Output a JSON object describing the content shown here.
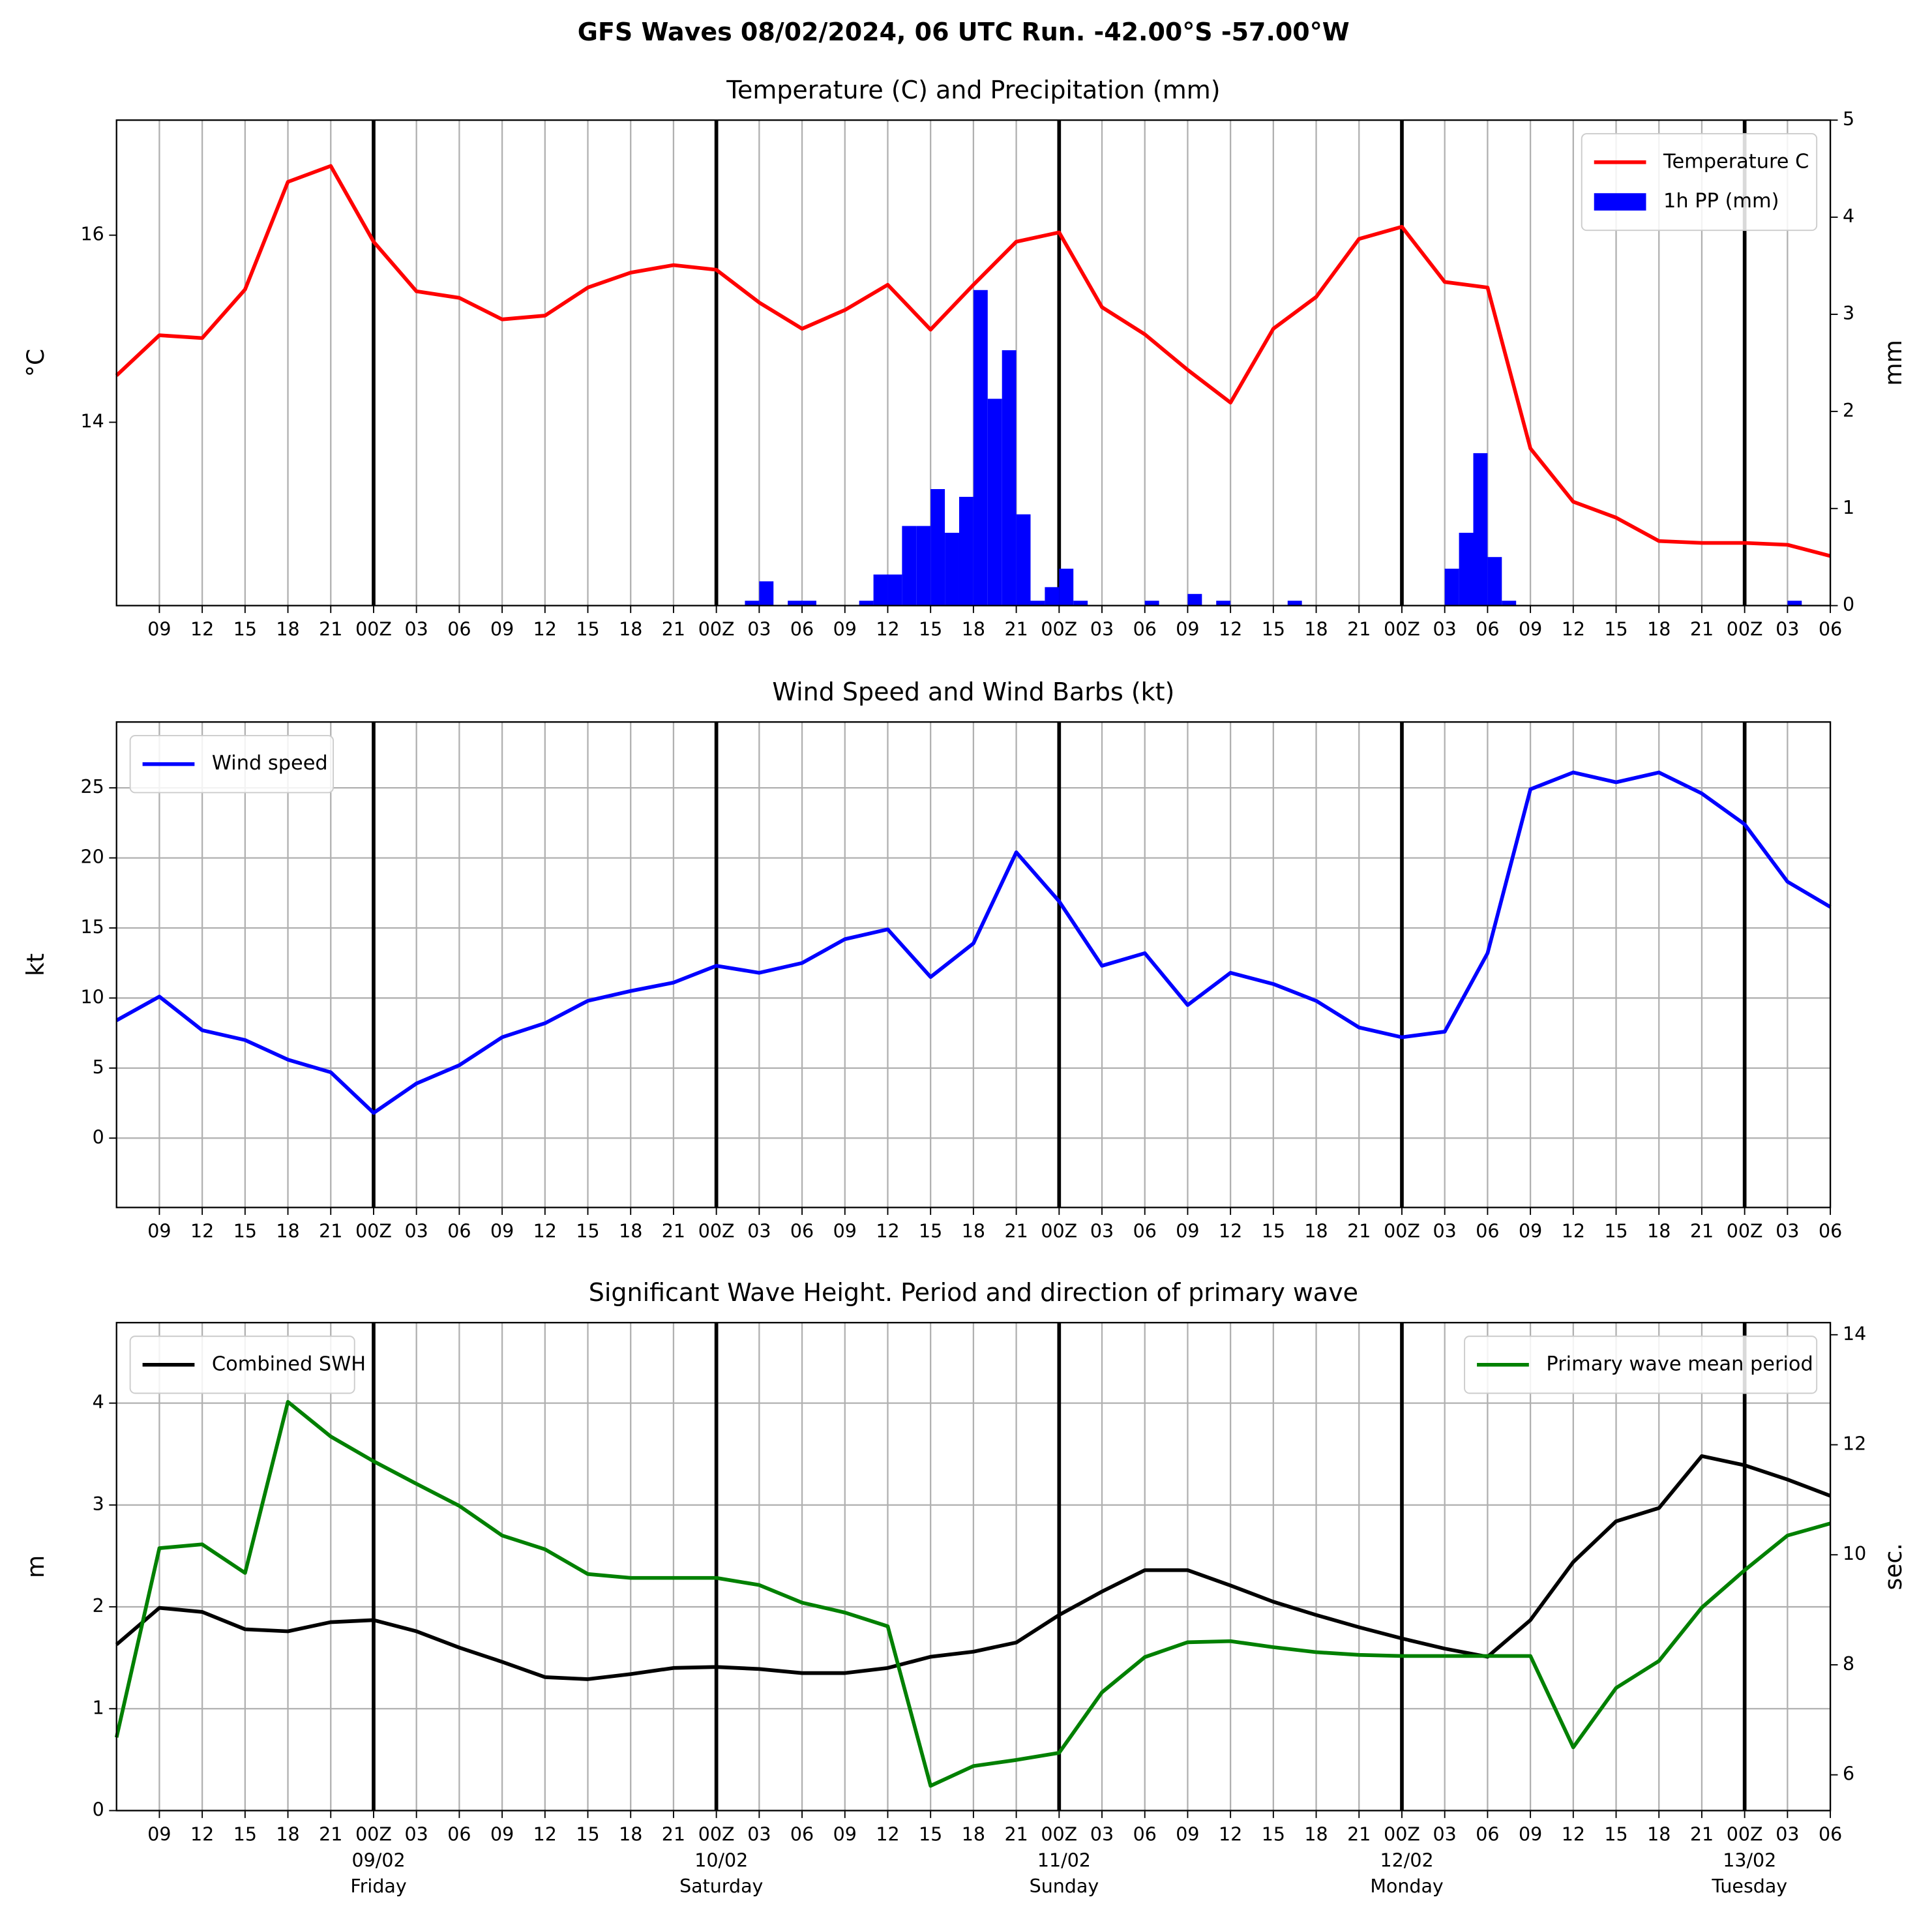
{
  "title": "GFS Waves 08/02/2024, 06 UTC Run. -42.00°S -57.00°W",
  "chart_data": [
    {
      "type": "line",
      "title": "Temperature (C) and Precipitation (mm)",
      "ylabel": "°C",
      "y2label": "mm",
      "grid": "x",
      "legend": "upper right",
      "xlim": [
        0,
        120
      ],
      "ylim": [
        12.04,
        17.23
      ],
      "yticks": [
        14,
        16
      ],
      "y2lim": [
        0,
        5
      ],
      "y2ticks": [
        0,
        1,
        2,
        3,
        4,
        5
      ],
      "day_lines": [
        18,
        42,
        66,
        90,
        114
      ],
      "xticks": [
        {
          "value": 3,
          "label": "09"
        },
        {
          "value": 6,
          "label": "12"
        },
        {
          "value": 9,
          "label": "15"
        },
        {
          "value": 12,
          "label": "18"
        },
        {
          "value": 15,
          "label": "21"
        },
        {
          "value": 18,
          "label": "00Z"
        },
        {
          "value": 21,
          "label": "03"
        },
        {
          "value": 24,
          "label": "06"
        },
        {
          "value": 27,
          "label": "09"
        },
        {
          "value": 30,
          "label": "12"
        },
        {
          "value": 33,
          "label": "15"
        },
        {
          "value": 36,
          "label": "18"
        },
        {
          "value": 39,
          "label": "21"
        },
        {
          "value": 42,
          "label": "00Z"
        },
        {
          "value": 45,
          "label": "03"
        },
        {
          "value": 48,
          "label": "06"
        },
        {
          "value": 51,
          "label": "09"
        },
        {
          "value": 54,
          "label": "12"
        },
        {
          "value": 57,
          "label": "15"
        },
        {
          "value": 60,
          "label": "18"
        },
        {
          "value": 63,
          "label": "21"
        },
        {
          "value": 66,
          "label": "00Z"
        },
        {
          "value": 69,
          "label": "03"
        },
        {
          "value": 72,
          "label": "06"
        },
        {
          "value": 75,
          "label": "09"
        },
        {
          "value": 78,
          "label": "12"
        },
        {
          "value": 81,
          "label": "15"
        },
        {
          "value": 84,
          "label": "18"
        },
        {
          "value": 87,
          "label": "21"
        },
        {
          "value": 90,
          "label": "00Z"
        },
        {
          "value": 93,
          "label": "03"
        },
        {
          "value": 96,
          "label": "06"
        },
        {
          "value": 99,
          "label": "09"
        },
        {
          "value": 102,
          "label": "12"
        },
        {
          "value": 105,
          "label": "15"
        },
        {
          "value": 108,
          "label": "18"
        },
        {
          "value": 111,
          "label": "21"
        },
        {
          "value": 114,
          "label": "00Z"
        },
        {
          "value": 117,
          "label": "03"
        },
        {
          "value": 120,
          "label": "06"
        }
      ],
      "series": [
        {
          "name": "Temperature C",
          "type": "line",
          "color": "#ff0000",
          "axis": "y",
          "x": [
            0,
            3,
            6,
            9,
            12,
            15,
            18,
            21,
            24,
            27,
            30,
            33,
            36,
            39,
            42,
            45,
            48,
            51,
            54,
            57,
            60,
            63,
            66,
            69,
            72,
            75,
            78,
            81,
            84,
            87,
            90,
            93,
            96,
            99,
            102,
            105,
            108,
            111,
            114,
            117,
            120
          ],
          "values": [
            14.5,
            14.93,
            14.9,
            15.42,
            16.57,
            16.74,
            15.93,
            15.4,
            15.33,
            15.1,
            15.14,
            15.44,
            15.6,
            15.68,
            15.63,
            15.28,
            15.0,
            15.2,
            15.47,
            14.99,
            15.47,
            15.93,
            16.03,
            15.23,
            14.94,
            14.56,
            14.21,
            15.0,
            15.34,
            15.96,
            16.09,
            15.5,
            15.44,
            13.72,
            13.15,
            12.98,
            12.73,
            12.71,
            12.71,
            12.69,
            12.57
          ]
        },
        {
          "name": "1h PP (mm)",
          "type": "bar",
          "color": "#0000ff",
          "axis": "y2",
          "x": [
            44,
            45,
            47,
            48,
            52,
            53,
            54,
            55,
            56,
            57,
            58,
            59,
            60,
            61,
            62,
            63,
            64,
            65,
            66,
            67,
            72,
            75,
            77,
            82,
            93,
            94,
            95,
            96,
            97,
            117
          ],
          "values": [
            0.05,
            0.25,
            0.05,
            0.05,
            0.05,
            0.32,
            0.32,
            0.82,
            0.82,
            1.2,
            0.75,
            1.12,
            3.25,
            2.13,
            2.63,
            0.94,
            0.05,
            0.19,
            0.38,
            0.05,
            0.05,
            0.12,
            0.05,
            0.05,
            0.38,
            0.75,
            1.57,
            0.5,
            0.05,
            0.05
          ]
        }
      ]
    },
    {
      "type": "line",
      "title": "Wind Speed and Wind Barbs (kt)",
      "ylabel": "kt",
      "grid": "both",
      "legend": "upper left",
      "xlim": [
        0,
        120
      ],
      "ylim": [
        -4.95,
        29.7
      ],
      "yticks": [
        0,
        5,
        10,
        15,
        20,
        25
      ],
      "day_lines": [
        18,
        42,
        66,
        90,
        114
      ],
      "xticks": [
        {
          "value": 3,
          "label": "09"
        },
        {
          "value": 6,
          "label": "12"
        },
        {
          "value": 9,
          "label": "15"
        },
        {
          "value": 12,
          "label": "18"
        },
        {
          "value": 15,
          "label": "21"
        },
        {
          "value": 18,
          "label": "00Z"
        },
        {
          "value": 21,
          "label": "03"
        },
        {
          "value": 24,
          "label": "06"
        },
        {
          "value": 27,
          "label": "09"
        },
        {
          "value": 30,
          "label": "12"
        },
        {
          "value": 33,
          "label": "15"
        },
        {
          "value": 36,
          "label": "18"
        },
        {
          "value": 39,
          "label": "21"
        },
        {
          "value": 42,
          "label": "00Z"
        },
        {
          "value": 45,
          "label": "03"
        },
        {
          "value": 48,
          "label": "06"
        },
        {
          "value": 51,
          "label": "09"
        },
        {
          "value": 54,
          "label": "12"
        },
        {
          "value": 57,
          "label": "15"
        },
        {
          "value": 60,
          "label": "18"
        },
        {
          "value": 63,
          "label": "21"
        },
        {
          "value": 66,
          "label": "00Z"
        },
        {
          "value": 69,
          "label": "03"
        },
        {
          "value": 72,
          "label": "06"
        },
        {
          "value": 75,
          "label": "09"
        },
        {
          "value": 78,
          "label": "12"
        },
        {
          "value": 81,
          "label": "15"
        },
        {
          "value": 84,
          "label": "18"
        },
        {
          "value": 87,
          "label": "21"
        },
        {
          "value": 90,
          "label": "00Z"
        },
        {
          "value": 93,
          "label": "03"
        },
        {
          "value": 96,
          "label": "06"
        },
        {
          "value": 99,
          "label": "09"
        },
        {
          "value": 102,
          "label": "12"
        },
        {
          "value": 105,
          "label": "15"
        },
        {
          "value": 108,
          "label": "18"
        },
        {
          "value": 111,
          "label": "21"
        },
        {
          "value": 114,
          "label": "00Z"
        },
        {
          "value": 117,
          "label": "03"
        },
        {
          "value": 120,
          "label": "06"
        }
      ],
      "series": [
        {
          "name": "Wind speed",
          "type": "line",
          "color": "#0000ff",
          "axis": "y",
          "x": [
            0,
            3,
            6,
            9,
            12,
            15,
            18,
            21,
            24,
            27,
            30,
            33,
            36,
            39,
            42,
            45,
            48,
            51,
            54,
            57,
            60,
            63,
            66,
            69,
            72,
            75,
            78,
            81,
            84,
            87,
            90,
            93,
            96,
            99,
            102,
            105,
            108,
            111,
            114,
            117,
            120
          ],
          "values": [
            8.4,
            10.1,
            7.7,
            7.0,
            5.6,
            4.7,
            1.8,
            3.9,
            5.2,
            7.2,
            8.2,
            9.8,
            10.5,
            11.1,
            12.3,
            11.8,
            12.5,
            14.2,
            14.9,
            11.5,
            13.9,
            20.4,
            16.9,
            12.3,
            13.2,
            9.5,
            11.8,
            11.0,
            9.8,
            7.9,
            7.2,
            7.6,
            13.2,
            24.9,
            26.1,
            25.4,
            26.1,
            24.6,
            22.4,
            18.3,
            16.5
          ]
        }
      ]
    },
    {
      "type": "line",
      "title": "Significant Wave Height. Period and direction of primary wave",
      "ylabel": "m",
      "y2label": "sec.",
      "y2label_color": "#008000",
      "grid": "both",
      "xlim": [
        0,
        120
      ],
      "ylim": [
        0,
        4.79
      ],
      "yticks": [
        0,
        1,
        2,
        3,
        4
      ],
      "y2lim": [
        5.35,
        14.22
      ],
      "y2ticks": [
        6,
        8,
        10,
        12,
        14
      ],
      "day_lines": [
        18,
        42,
        66,
        90,
        114
      ],
      "xticks": [
        {
          "value": 3,
          "label": "09"
        },
        {
          "value": 6,
          "label": "12"
        },
        {
          "value": 9,
          "label": "15"
        },
        {
          "value": 12,
          "label": "18"
        },
        {
          "value": 15,
          "label": "21"
        },
        {
          "value": 18,
          "label": "00Z"
        },
        {
          "value": 21,
          "label": "03"
        },
        {
          "value": 24,
          "label": "06"
        },
        {
          "value": 27,
          "label": "09"
        },
        {
          "value": 30,
          "label": "12"
        },
        {
          "value": 33,
          "label": "15"
        },
        {
          "value": 36,
          "label": "18"
        },
        {
          "value": 39,
          "label": "21"
        },
        {
          "value": 42,
          "label": "00Z"
        },
        {
          "value": 45,
          "label": "03"
        },
        {
          "value": 48,
          "label": "06"
        },
        {
          "value": 51,
          "label": "09"
        },
        {
          "value": 54,
          "label": "12"
        },
        {
          "value": 57,
          "label": "15"
        },
        {
          "value": 60,
          "label": "18"
        },
        {
          "value": 63,
          "label": "21"
        },
        {
          "value": 66,
          "label": "00Z"
        },
        {
          "value": 69,
          "label": "03"
        },
        {
          "value": 72,
          "label": "06"
        },
        {
          "value": 75,
          "label": "09"
        },
        {
          "value": 78,
          "label": "12"
        },
        {
          "value": 81,
          "label": "15"
        },
        {
          "value": 84,
          "label": "18"
        },
        {
          "value": 87,
          "label": "21"
        },
        {
          "value": 90,
          "label": "00Z"
        },
        {
          "value": 93,
          "label": "03"
        },
        {
          "value": 96,
          "label": "06"
        },
        {
          "value": 99,
          "label": "09"
        },
        {
          "value": 102,
          "label": "12"
        },
        {
          "value": 105,
          "label": "15"
        },
        {
          "value": 108,
          "label": "18"
        },
        {
          "value": 111,
          "label": "21"
        },
        {
          "value": 114,
          "label": "00Z"
        },
        {
          "value": 117,
          "label": "03"
        },
        {
          "value": 120,
          "label": "06"
        }
      ],
      "day_labels": [
        {
          "value": 18,
          "date": "09/02",
          "weekday": "Friday"
        },
        {
          "value": 42,
          "date": "10/02",
          "weekday": "Saturday"
        },
        {
          "value": 66,
          "date": "11/02",
          "weekday": "Sunday"
        },
        {
          "value": 90,
          "date": "12/02",
          "weekday": "Monday"
        },
        {
          "value": 114,
          "date": "13/02",
          "weekday": "Tuesday"
        }
      ],
      "series": [
        {
          "name": "Combined SWH",
          "type": "line",
          "color": "#000000",
          "axis": "y",
          "legend": "upper left",
          "x": [
            0,
            3,
            6,
            9,
            12,
            15,
            18,
            21,
            24,
            27,
            30,
            33,
            36,
            39,
            42,
            45,
            48,
            51,
            54,
            57,
            60,
            63,
            66,
            69,
            72,
            75,
            78,
            81,
            84,
            87,
            90,
            93,
            96,
            99,
            102,
            105,
            108,
            111,
            114,
            117,
            120
          ],
          "values": [
            1.63,
            1.99,
            1.95,
            1.78,
            1.76,
            1.85,
            1.87,
            1.76,
            1.6,
            1.46,
            1.31,
            1.29,
            1.34,
            1.4,
            1.41,
            1.39,
            1.35,
            1.35,
            1.4,
            1.51,
            1.56,
            1.65,
            1.92,
            2.15,
            2.36,
            2.36,
            2.21,
            2.05,
            1.92,
            1.8,
            1.69,
            1.59,
            1.51,
            1.87,
            2.44,
            2.84,
            2.97,
            3.48,
            3.39,
            3.25,
            3.09
          ]
        },
        {
          "name": "Primary wave mean period",
          "type": "line",
          "color": "#008000",
          "axis": "y2",
          "legend": "upper right",
          "x": [
            0,
            3,
            6,
            9,
            12,
            15,
            18,
            21,
            24,
            27,
            30,
            33,
            36,
            39,
            42,
            45,
            48,
            51,
            54,
            57,
            60,
            63,
            66,
            69,
            72,
            75,
            78,
            81,
            84,
            87,
            90,
            93,
            96,
            99,
            102,
            105,
            108,
            111,
            114,
            117,
            120
          ],
          "values": [
            6.68,
            10.12,
            10.19,
            9.67,
            12.78,
            12.15,
            11.7,
            11.29,
            10.89,
            10.35,
            10.1,
            9.65,
            9.58,
            9.58,
            9.58,
            9.45,
            9.13,
            8.95,
            8.7,
            5.8,
            6.16,
            6.27,
            6.4,
            7.5,
            8.14,
            8.41,
            8.43,
            8.32,
            8.23,
            8.18,
            8.16,
            8.16,
            8.16,
            8.16,
            6.5,
            7.58,
            8.07,
            9.04,
            9.72,
            10.35,
            10.57
          ]
        }
      ]
    }
  ]
}
